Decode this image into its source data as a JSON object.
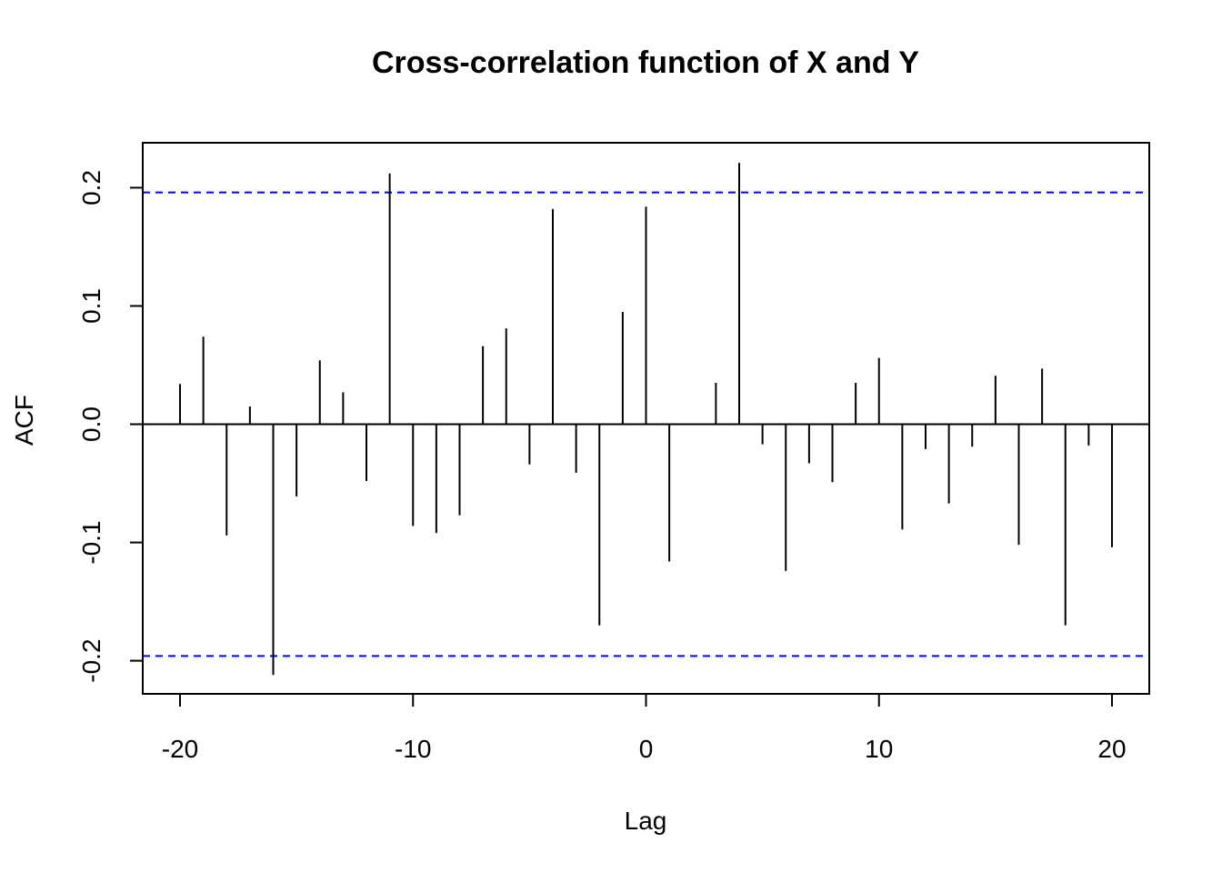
{
  "chart_data": {
    "type": "bar",
    "title": "Cross-correlation function of X and Y",
    "xlabel": "Lag",
    "ylabel": "ACF",
    "xlim": [
      -21.6,
      21.6
    ],
    "ylim": [
      -0.228,
      0.238
    ],
    "x_ticks": [
      -20,
      -10,
      0,
      10,
      20
    ],
    "y_ticks": [
      -0.2,
      -0.1,
      0.0,
      0.1,
      0.2
    ],
    "y_tick_labels": [
      "-0.2",
      "-0.1",
      "0.0",
      "0.1",
      "0.2"
    ],
    "confidence_bound": 0.196,
    "confidence_color": "#0000ff",
    "bar_color": "#000000",
    "lags": [
      -20,
      -19,
      -18,
      -17,
      -16,
      -15,
      -14,
      -13,
      -12,
      -11,
      -10,
      -9,
      -8,
      -7,
      -6,
      -5,
      -4,
      -3,
      -2,
      -1,
      0,
      1,
      2,
      3,
      4,
      5,
      6,
      7,
      8,
      9,
      10,
      11,
      12,
      13,
      14,
      15,
      16,
      17,
      18,
      19,
      20
    ],
    "values": [
      0.034,
      0.074,
      -0.094,
      0.015,
      -0.212,
      -0.061,
      0.054,
      0.027,
      -0.048,
      0.212,
      -0.086,
      -0.092,
      -0.077,
      0.066,
      0.081,
      -0.034,
      0.182,
      -0.041,
      -0.17,
      0.095,
      0.184,
      -0.116,
      0.0,
      0.035,
      0.221,
      -0.017,
      -0.124,
      -0.033,
      -0.049,
      0.035,
      0.056,
      -0.089,
      -0.021,
      -0.067,
      -0.019,
      0.041,
      -0.102,
      0.047,
      -0.17,
      -0.018,
      -0.104
    ]
  }
}
